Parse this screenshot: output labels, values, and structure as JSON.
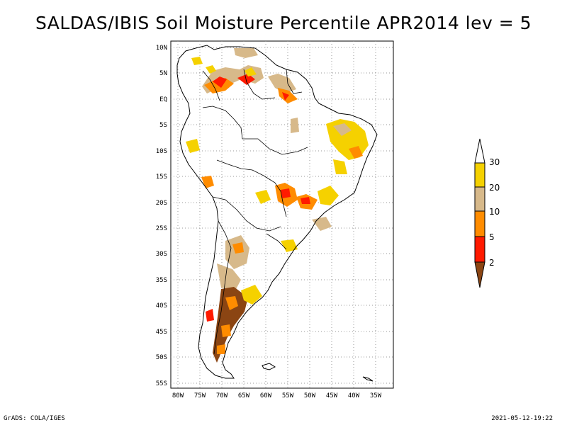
{
  "title": "SALDAS/IBIS Soil Moisture Percentile APR2014 lev = 5",
  "footer": {
    "left": "GrADS: COLA/IGES",
    "right": "2021-05-12-19:22"
  },
  "map": {
    "lat_labels": [
      "10N",
      "5N",
      "EQ",
      "5S",
      "10S",
      "15S",
      "20S",
      "25S",
      "30S",
      "35S",
      "40S",
      "45S",
      "50S",
      "55S"
    ],
    "lon_labels": [
      "80W",
      "75W",
      "70W",
      "65W",
      "60W",
      "55W",
      "50W",
      "45W",
      "40W",
      "35W"
    ],
    "grid": "dotted",
    "lat_range": [
      -56,
      11
    ],
    "lon_range": [
      -81,
      -33
    ]
  },
  "colorbar": {
    "labels": [
      "30",
      "20",
      "10",
      "5",
      "2"
    ],
    "colors": {
      "above_30": "#ffffff",
      "20_30": "#f5d100",
      "10_20": "#d7b98a",
      "5_10": "#ff8c00",
      "2_5": "#ff1a00",
      "below_2": "#8b4513"
    }
  }
}
